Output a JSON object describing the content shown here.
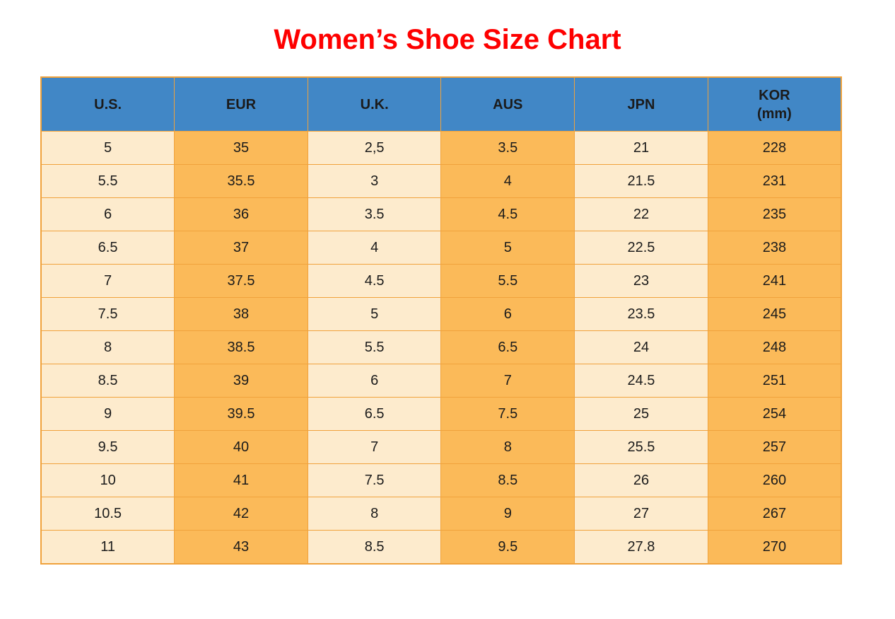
{
  "title": "Women’s Shoe Size Chart",
  "colors": {
    "title_color": "#fe0000",
    "header_bg": "#4187c6",
    "light": "#fdebcd",
    "orange": "#fbba59",
    "border": "#f0a23c",
    "text": "#1b1b1b"
  },
  "chart_data": {
    "type": "table",
    "title": "Women’s Shoe Size Chart",
    "legend_position": "none",
    "grid": "on",
    "columns": [
      {
        "key": "us",
        "lines": [
          "U.S."
        ]
      },
      {
        "key": "eur",
        "lines": [
          "EUR"
        ]
      },
      {
        "key": "uk",
        "lines": [
          "U.K."
        ]
      },
      {
        "key": "aus",
        "lines": [
          "AUS"
        ]
      },
      {
        "key": "jpn",
        "lines": [
          "JPN"
        ]
      },
      {
        "key": "kor",
        "lines": [
          "KOR",
          "(mm)"
        ]
      }
    ],
    "rows": [
      [
        "5",
        "35",
        "2,5",
        "3.5",
        "21",
        "228"
      ],
      [
        "5.5",
        "35.5",
        "3",
        "4",
        "21.5",
        "231"
      ],
      [
        "6",
        "36",
        "3.5",
        "4.5",
        "22",
        "235"
      ],
      [
        "6.5",
        "37",
        "4",
        "5",
        "22.5",
        "238"
      ],
      [
        "7",
        "37.5",
        "4.5",
        "5.5",
        "23",
        "241"
      ],
      [
        "7.5",
        "38",
        "5",
        "6",
        "23.5",
        "245"
      ],
      [
        "8",
        "38.5",
        "5.5",
        "6.5",
        "24",
        "248"
      ],
      [
        "8.5",
        "39",
        "6",
        "7",
        "24.5",
        "251"
      ],
      [
        "9",
        "39.5",
        "6.5",
        "7.5",
        "25",
        "254"
      ],
      [
        "9.5",
        "40",
        "7",
        "8",
        "25.5",
        "257"
      ],
      [
        "10",
        "41",
        "7.5",
        "8.5",
        "26",
        "260"
      ],
      [
        "10.5",
        "42",
        "8",
        "9",
        "27",
        "267"
      ],
      [
        "11",
        "43",
        "8.5",
        "9.5",
        "27.8",
        "270"
      ]
    ]
  }
}
